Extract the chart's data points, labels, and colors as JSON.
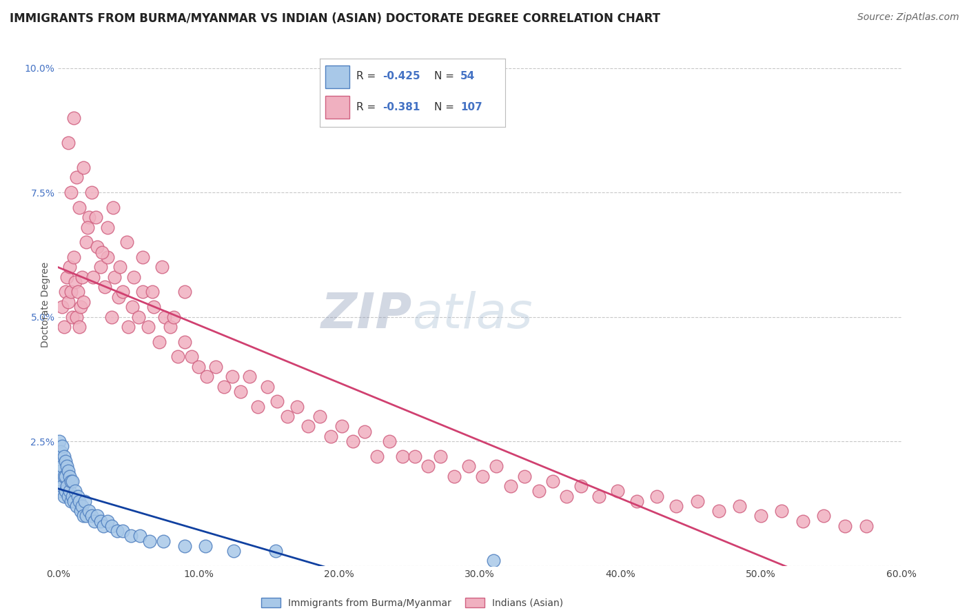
{
  "title": "IMMIGRANTS FROM BURMA/MYANMAR VS INDIAN (ASIAN) DOCTORATE DEGREE CORRELATION CHART",
  "source_text": "Source: ZipAtlas.com",
  "ylabel": "Doctorate Degree",
  "xlim": [
    0.0,
    0.6
  ],
  "ylim": [
    0.0,
    0.105
  ],
  "xticks": [
    0.0,
    0.1,
    0.2,
    0.3,
    0.4,
    0.5,
    0.6
  ],
  "xtick_labels": [
    "0.0%",
    "10.0%",
    "20.0%",
    "30.0%",
    "40.0%",
    "50.0%",
    "60.0%"
  ],
  "yticks": [
    0.0,
    0.025,
    0.05,
    0.075,
    0.1
  ],
  "ytick_labels": [
    "",
    "2.5%",
    "5.0%",
    "7.5%",
    "10.0%"
  ],
  "blue_color": "#a8c8e8",
  "blue_edge_color": "#5080c0",
  "pink_color": "#f0b0c0",
  "pink_edge_color": "#d06080",
  "blue_line_color": "#1040a0",
  "pink_line_color": "#d04070",
  "grid_color": "#c8c8c8",
  "background_color": "#ffffff",
  "watermark_color": "#c8d4e8",
  "title_fontsize": 12,
  "source_fontsize": 10,
  "axis_label_fontsize": 10,
  "tick_fontsize": 10,
  "blue_scatter_x": [
    0.001,
    0.001,
    0.001,
    0.002,
    0.002,
    0.002,
    0.003,
    0.003,
    0.003,
    0.004,
    0.004,
    0.004,
    0.005,
    0.005,
    0.005,
    0.006,
    0.006,
    0.007,
    0.007,
    0.008,
    0.008,
    0.009,
    0.009,
    0.01,
    0.01,
    0.011,
    0.012,
    0.013,
    0.014,
    0.015,
    0.016,
    0.017,
    0.018,
    0.019,
    0.02,
    0.022,
    0.024,
    0.026,
    0.028,
    0.03,
    0.032,
    0.035,
    0.038,
    0.042,
    0.046,
    0.052,
    0.058,
    0.065,
    0.075,
    0.09,
    0.105,
    0.125,
    0.155,
    0.31
  ],
  "blue_scatter_y": [
    0.018,
    0.022,
    0.025,
    0.015,
    0.019,
    0.023,
    0.016,
    0.02,
    0.024,
    0.014,
    0.018,
    0.022,
    0.015,
    0.018,
    0.021,
    0.016,
    0.02,
    0.014,
    0.019,
    0.015,
    0.018,
    0.013,
    0.017,
    0.014,
    0.017,
    0.013,
    0.015,
    0.012,
    0.014,
    0.013,
    0.011,
    0.012,
    0.01,
    0.013,
    0.01,
    0.011,
    0.01,
    0.009,
    0.01,
    0.009,
    0.008,
    0.009,
    0.008,
    0.007,
    0.007,
    0.006,
    0.006,
    0.005,
    0.005,
    0.004,
    0.004,
    0.003,
    0.003,
    0.001
  ],
  "pink_scatter_x": [
    0.003,
    0.004,
    0.005,
    0.006,
    0.007,
    0.008,
    0.009,
    0.01,
    0.011,
    0.012,
    0.013,
    0.014,
    0.015,
    0.016,
    0.017,
    0.018,
    0.02,
    0.022,
    0.025,
    0.028,
    0.03,
    0.033,
    0.035,
    0.038,
    0.04,
    0.043,
    0.046,
    0.05,
    0.053,
    0.057,
    0.06,
    0.064,
    0.068,
    0.072,
    0.076,
    0.08,
    0.085,
    0.09,
    0.095,
    0.1,
    0.106,
    0.112,
    0.118,
    0.124,
    0.13,
    0.136,
    0.142,
    0.149,
    0.156,
    0.163,
    0.17,
    0.178,
    0.186,
    0.194,
    0.202,
    0.21,
    0.218,
    0.227,
    0.236,
    0.245,
    0.254,
    0.263,
    0.272,
    0.282,
    0.292,
    0.302,
    0.312,
    0.322,
    0.332,
    0.342,
    0.352,
    0.362,
    0.372,
    0.385,
    0.398,
    0.412,
    0.426,
    0.44,
    0.455,
    0.47,
    0.485,
    0.5,
    0.515,
    0.53,
    0.545,
    0.56,
    0.575,
    0.007,
    0.009,
    0.011,
    0.013,
    0.015,
    0.018,
    0.021,
    0.024,
    0.027,
    0.031,
    0.035,
    0.039,
    0.044,
    0.049,
    0.054,
    0.06,
    0.067,
    0.074,
    0.082,
    0.09
  ],
  "pink_scatter_y": [
    0.052,
    0.048,
    0.055,
    0.058,
    0.053,
    0.06,
    0.055,
    0.05,
    0.062,
    0.057,
    0.05,
    0.055,
    0.048,
    0.052,
    0.058,
    0.053,
    0.065,
    0.07,
    0.058,
    0.064,
    0.06,
    0.056,
    0.062,
    0.05,
    0.058,
    0.054,
    0.055,
    0.048,
    0.052,
    0.05,
    0.055,
    0.048,
    0.052,
    0.045,
    0.05,
    0.048,
    0.042,
    0.045,
    0.042,
    0.04,
    0.038,
    0.04,
    0.036,
    0.038,
    0.035,
    0.038,
    0.032,
    0.036,
    0.033,
    0.03,
    0.032,
    0.028,
    0.03,
    0.026,
    0.028,
    0.025,
    0.027,
    0.022,
    0.025,
    0.022,
    0.022,
    0.02,
    0.022,
    0.018,
    0.02,
    0.018,
    0.02,
    0.016,
    0.018,
    0.015,
    0.017,
    0.014,
    0.016,
    0.014,
    0.015,
    0.013,
    0.014,
    0.012,
    0.013,
    0.011,
    0.012,
    0.01,
    0.011,
    0.009,
    0.01,
    0.008,
    0.008,
    0.085,
    0.075,
    0.09,
    0.078,
    0.072,
    0.08,
    0.068,
    0.075,
    0.07,
    0.063,
    0.068,
    0.072,
    0.06,
    0.065,
    0.058,
    0.062,
    0.055,
    0.06,
    0.05,
    0.055
  ]
}
